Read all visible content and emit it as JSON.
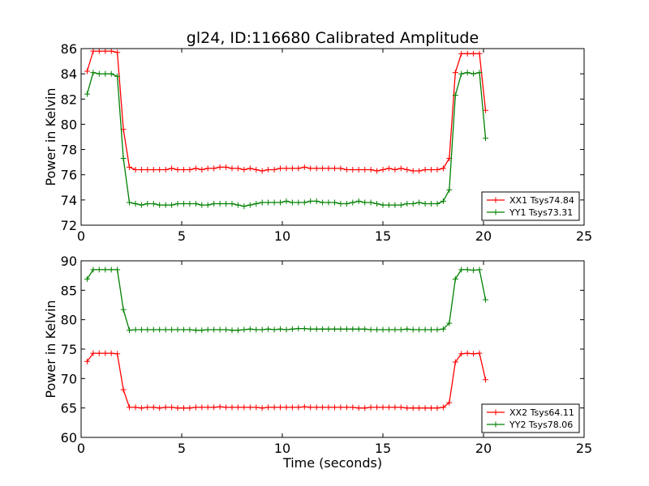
{
  "chart_data": [
    {
      "type": "line",
      "title": "gl24, ID:116680 Calibrated Amplitude",
      "xlabel": "",
      "ylabel": "Power in Kelvin",
      "xlim": [
        0,
        25
      ],
      "ylim": [
        72,
        86
      ],
      "xticks": [
        0,
        5,
        10,
        15,
        20,
        25
      ],
      "yticks": [
        72,
        74,
        76,
        78,
        80,
        82,
        84,
        86
      ],
      "grid": false,
      "legend": "bottom-right",
      "series": [
        {
          "name": "XX1 Tsys74.84",
          "color": "#ff0000",
          "x": [
            0.3,
            0.6,
            0.9,
            1.2,
            1.5,
            1.8,
            2.1,
            2.4,
            2.7,
            3.0,
            3.3,
            3.6,
            3.9,
            4.2,
            4.5,
            4.8,
            5.1,
            5.4,
            5.7,
            6.0,
            6.3,
            6.6,
            6.9,
            7.2,
            7.5,
            7.8,
            8.1,
            8.4,
            8.7,
            9.0,
            9.3,
            9.6,
            9.9,
            10.2,
            10.5,
            10.8,
            11.1,
            11.4,
            11.7,
            12.0,
            12.3,
            12.6,
            12.9,
            13.2,
            13.5,
            13.8,
            14.1,
            14.4,
            14.7,
            15.0,
            15.3,
            15.6,
            15.9,
            16.2,
            16.5,
            16.8,
            17.1,
            17.4,
            17.7,
            18.0,
            18.3,
            18.6,
            18.9,
            19.2,
            19.5,
            19.8,
            20.1
          ],
          "y": [
            84.2,
            85.8,
            85.8,
            85.8,
            85.8,
            85.7,
            79.6,
            76.6,
            76.4,
            76.4,
            76.4,
            76.4,
            76.4,
            76.4,
            76.5,
            76.4,
            76.4,
            76.4,
            76.5,
            76.4,
            76.5,
            76.5,
            76.6,
            76.6,
            76.5,
            76.5,
            76.4,
            76.5,
            76.4,
            76.3,
            76.4,
            76.4,
            76.5,
            76.5,
            76.5,
            76.5,
            76.6,
            76.5,
            76.5,
            76.5,
            76.5,
            76.5,
            76.5,
            76.4,
            76.4,
            76.4,
            76.4,
            76.4,
            76.3,
            76.4,
            76.5,
            76.4,
            76.5,
            76.4,
            76.3,
            76.3,
            76.4,
            76.4,
            76.4,
            76.5,
            77.3,
            84.1,
            85.6,
            85.6,
            85.6,
            85.6,
            81.1
          ]
        },
        {
          "name": "YY1 Tsys73.31",
          "color": "#008000",
          "x": [
            0.3,
            0.6,
            0.9,
            1.2,
            1.5,
            1.8,
            2.1,
            2.4,
            2.7,
            3.0,
            3.3,
            3.6,
            3.9,
            4.2,
            4.5,
            4.8,
            5.1,
            5.4,
            5.7,
            6.0,
            6.3,
            6.6,
            6.9,
            7.2,
            7.5,
            7.8,
            8.1,
            8.4,
            8.7,
            9.0,
            9.3,
            9.6,
            9.9,
            10.2,
            10.5,
            10.8,
            11.1,
            11.4,
            11.7,
            12.0,
            12.3,
            12.6,
            12.9,
            13.2,
            13.5,
            13.8,
            14.1,
            14.4,
            14.7,
            15.0,
            15.3,
            15.6,
            15.9,
            16.2,
            16.5,
            16.8,
            17.1,
            17.4,
            17.7,
            18.0,
            18.3,
            18.6,
            18.9,
            19.2,
            19.5,
            19.8,
            20.1
          ],
          "y": [
            82.4,
            84.1,
            84.0,
            84.0,
            84.0,
            83.8,
            77.3,
            73.8,
            73.7,
            73.6,
            73.7,
            73.7,
            73.6,
            73.6,
            73.6,
            73.7,
            73.7,
            73.7,
            73.7,
            73.6,
            73.6,
            73.7,
            73.7,
            73.7,
            73.7,
            73.6,
            73.5,
            73.6,
            73.7,
            73.8,
            73.8,
            73.8,
            73.8,
            73.9,
            73.8,
            73.8,
            73.8,
            73.9,
            73.9,
            73.8,
            73.8,
            73.8,
            73.7,
            73.7,
            73.8,
            73.9,
            73.8,
            73.8,
            73.7,
            73.6,
            73.6,
            73.6,
            73.6,
            73.7,
            73.7,
            73.8,
            73.7,
            73.7,
            73.7,
            73.9,
            74.8,
            82.3,
            84.0,
            84.1,
            84.0,
            84.1,
            78.9
          ]
        }
      ]
    },
    {
      "type": "line",
      "title": "",
      "xlabel": "Time (seconds)",
      "ylabel": "Power in Kelvin",
      "xlim": [
        0,
        25
      ],
      "ylim": [
        60,
        90
      ],
      "xticks": [
        0,
        5,
        10,
        15,
        20,
        25
      ],
      "yticks": [
        60,
        65,
        70,
        75,
        80,
        85,
        90
      ],
      "grid": false,
      "legend": "bottom-right",
      "series": [
        {
          "name": "XX2 Tsys64.11",
          "color": "#ff0000",
          "x": [
            0.3,
            0.6,
            0.9,
            1.2,
            1.5,
            1.8,
            2.1,
            2.4,
            2.7,
            3.0,
            3.3,
            3.6,
            3.9,
            4.2,
            4.5,
            4.8,
            5.1,
            5.4,
            5.7,
            6.0,
            6.3,
            6.6,
            6.9,
            7.2,
            7.5,
            7.8,
            8.1,
            8.4,
            8.7,
            9.0,
            9.3,
            9.6,
            9.9,
            10.2,
            10.5,
            10.8,
            11.1,
            11.4,
            11.7,
            12.0,
            12.3,
            12.6,
            12.9,
            13.2,
            13.5,
            13.8,
            14.1,
            14.4,
            14.7,
            15.0,
            15.3,
            15.6,
            15.9,
            16.2,
            16.5,
            16.8,
            17.1,
            17.4,
            17.7,
            18.0,
            18.3,
            18.6,
            18.9,
            19.2,
            19.5,
            19.8,
            20.1
          ],
          "y": [
            72.9,
            74.3,
            74.3,
            74.3,
            74.3,
            74.2,
            68.1,
            65.1,
            65.1,
            65.0,
            65.1,
            65.1,
            65.0,
            65.1,
            65.1,
            65.0,
            65.0,
            65.0,
            65.1,
            65.1,
            65.1,
            65.1,
            65.2,
            65.1,
            65.1,
            65.1,
            65.1,
            65.1,
            65.1,
            65.0,
            65.1,
            65.1,
            65.1,
            65.1,
            65.1,
            65.1,
            65.2,
            65.1,
            65.1,
            65.1,
            65.1,
            65.1,
            65.1,
            65.1,
            65.1,
            65.0,
            65.0,
            65.1,
            65.1,
            65.1,
            65.1,
            65.1,
            65.1,
            65.0,
            65.0,
            65.0,
            65.0,
            65.0,
            65.0,
            65.1,
            65.9,
            72.8,
            74.2,
            74.3,
            74.2,
            74.3,
            69.8
          ]
        },
        {
          "name": "YY2 Tsys78.06",
          "color": "#008000",
          "x": [
            0.3,
            0.6,
            0.9,
            1.2,
            1.5,
            1.8,
            2.1,
            2.4,
            2.7,
            3.0,
            3.3,
            3.6,
            3.9,
            4.2,
            4.5,
            4.8,
            5.1,
            5.4,
            5.7,
            6.0,
            6.3,
            6.6,
            6.9,
            7.2,
            7.5,
            7.8,
            8.1,
            8.4,
            8.7,
            9.0,
            9.3,
            9.6,
            9.9,
            10.2,
            10.5,
            10.8,
            11.1,
            11.4,
            11.7,
            12.0,
            12.3,
            12.6,
            12.9,
            13.2,
            13.5,
            13.8,
            14.1,
            14.4,
            14.7,
            15.0,
            15.3,
            15.6,
            15.9,
            16.2,
            16.5,
            16.8,
            17.1,
            17.4,
            17.7,
            18.0,
            18.3,
            18.6,
            18.9,
            19.2,
            19.5,
            19.8,
            20.1
          ],
          "y": [
            86.9,
            88.5,
            88.5,
            88.5,
            88.5,
            88.5,
            81.7,
            78.2,
            78.3,
            78.3,
            78.3,
            78.3,
            78.3,
            78.3,
            78.3,
            78.3,
            78.3,
            78.3,
            78.2,
            78.2,
            78.3,
            78.3,
            78.3,
            78.3,
            78.2,
            78.2,
            78.3,
            78.4,
            78.3,
            78.3,
            78.4,
            78.3,
            78.4,
            78.3,
            78.4,
            78.5,
            78.5,
            78.4,
            78.4,
            78.4,
            78.4,
            78.4,
            78.4,
            78.4,
            78.4,
            78.4,
            78.4,
            78.3,
            78.3,
            78.3,
            78.3,
            78.3,
            78.3,
            78.4,
            78.3,
            78.3,
            78.3,
            78.3,
            78.3,
            78.4,
            79.4,
            86.9,
            88.5,
            88.5,
            88.4,
            88.5,
            83.4
          ]
        }
      ]
    }
  ]
}
